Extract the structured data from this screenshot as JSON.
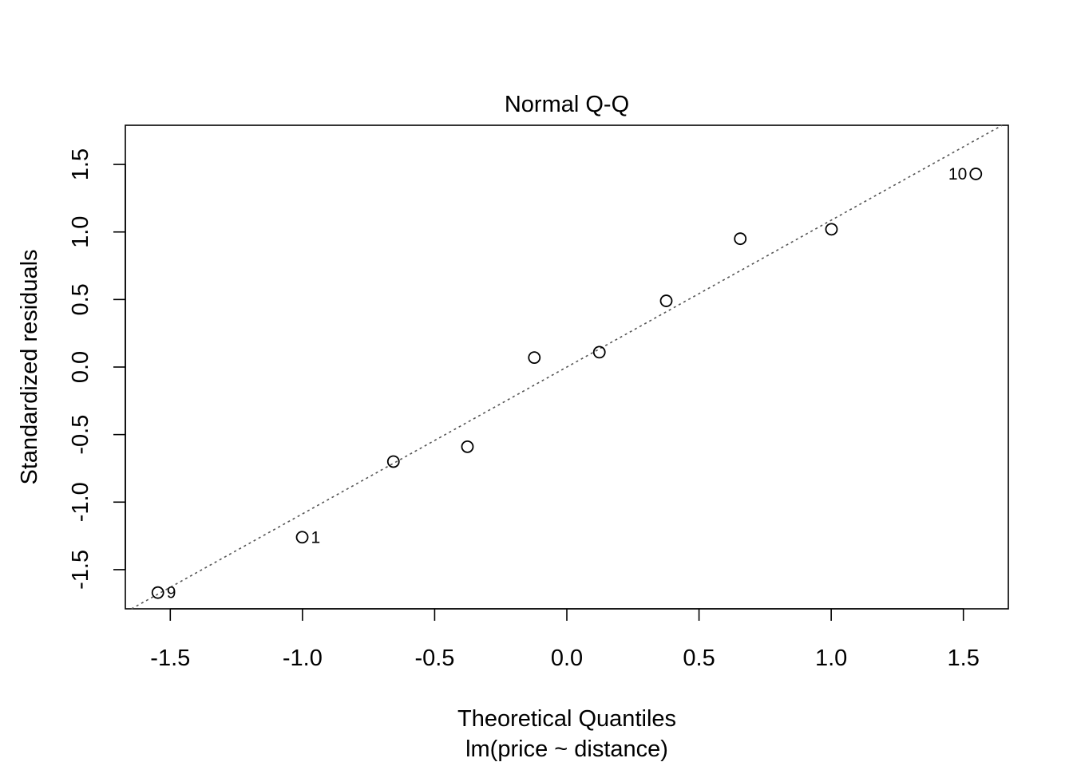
{
  "chart_data": {
    "type": "scatter",
    "title": "Normal Q-Q",
    "xlabel": "Theoretical Quantiles",
    "subtitle": "lm(price ~ distance)",
    "ylabel": "Standardized residuals",
    "xlim": [
      -1.67,
      1.67
    ],
    "ylim": [
      -1.79,
      1.79
    ],
    "x_ticks": [
      -1.5,
      -1.0,
      -0.5,
      0.0,
      0.5,
      1.0,
      1.5
    ],
    "x_tick_labels": [
      "-1.5",
      "-1.0",
      "-0.5",
      "0.0",
      "0.5",
      "1.0",
      "1.5"
    ],
    "y_ticks": [
      -1.5,
      -1.0,
      -0.5,
      0.0,
      0.5,
      1.0,
      1.5
    ],
    "y_tick_labels": [
      "-1.5",
      "-1.0",
      "-0.5",
      "0.0",
      "0.5",
      "1.0",
      "1.5"
    ],
    "grid": false,
    "reference_line": {
      "intercept": 0.0,
      "slope": 1.087,
      "style": "dotted",
      "color": "#555555"
    },
    "points": [
      {
        "x": -1.547,
        "y": -1.67,
        "label": "9"
      },
      {
        "x": -1.001,
        "y": -1.26,
        "label": "1"
      },
      {
        "x": -0.656,
        "y": -0.7,
        "label": ""
      },
      {
        "x": -0.376,
        "y": -0.59,
        "label": ""
      },
      {
        "x": -0.123,
        "y": 0.07,
        "label": ""
      },
      {
        "x": 0.123,
        "y": 0.11,
        "label": ""
      },
      {
        "x": 0.376,
        "y": 0.49,
        "label": ""
      },
      {
        "x": 0.656,
        "y": 0.95,
        "label": ""
      },
      {
        "x": 1.001,
        "y": 1.02,
        "label": ""
      },
      {
        "x": 1.547,
        "y": 1.43,
        "label": "10"
      }
    ]
  }
}
